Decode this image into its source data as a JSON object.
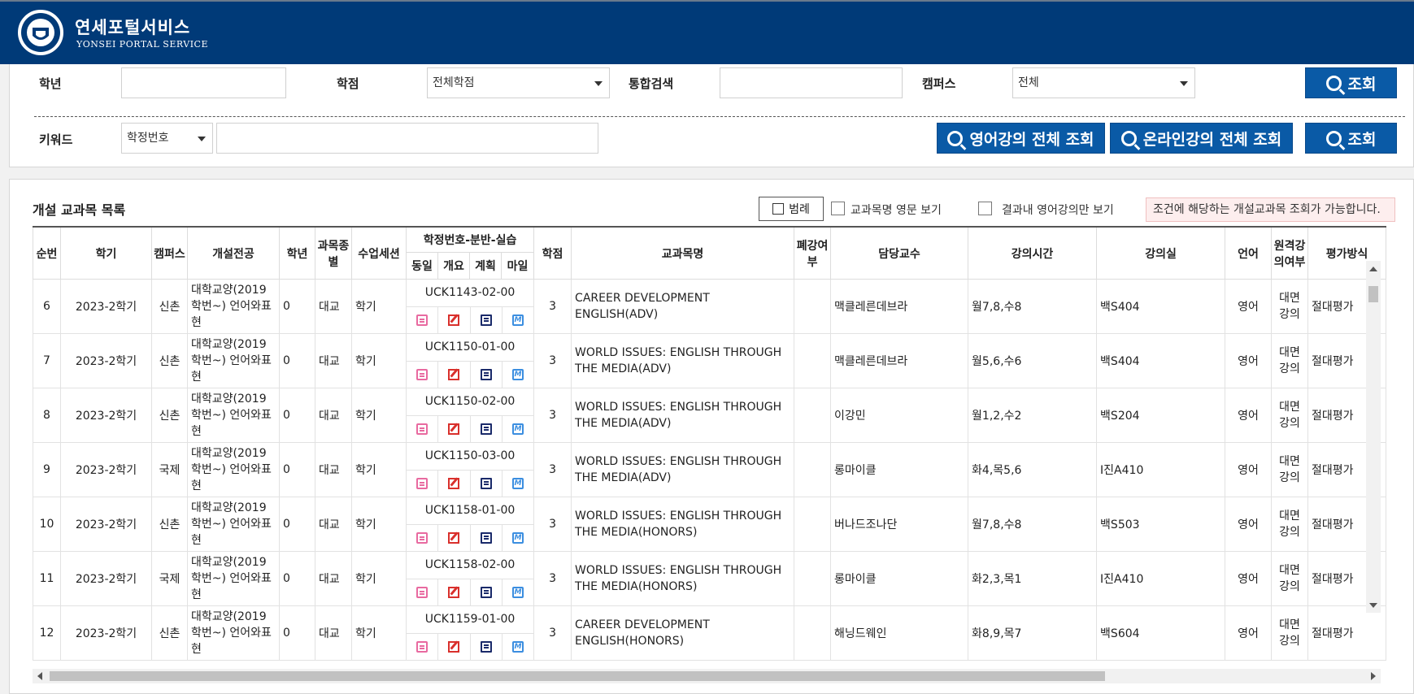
{
  "header": {
    "title_kr": "연세포털서비스",
    "title_en": "YONSEI PORTAL SERVICE",
    "brand_color": "#003a78"
  },
  "search": {
    "grade_label": "학년",
    "grade_value": "",
    "credit_label": "학점",
    "credit_value": "전체학점",
    "integrated_label": "통합검색",
    "integrated_value": "",
    "campus_label": "캠퍼스",
    "campus_value": "전체",
    "search_button": "조회",
    "keyword_label": "키워드",
    "keyword_type": "학정번호",
    "keyword_value": "",
    "english_all_button": "영어강의 전체 조회",
    "online_all_button": "온라인강의 전체 조회",
    "search_button2": "조회",
    "button_color": "#0a5aa6"
  },
  "list": {
    "title": "개설 교과목 목록",
    "legend_button": "범례",
    "english_name_label": "교과목명 영문 보기",
    "english_only_label": "결과내 영어강의만 보기",
    "notice": "조건에 해당하는 개설교과목 조회가 가능합니다.",
    "headers": {
      "no": "순번",
      "term": "학기",
      "campus": "캠퍼스",
      "dept": "개설전공",
      "grade": "학년",
      "type": "과목종별",
      "session": "수업세션",
      "code_group": "학정번호-분반-실습",
      "same": "동일",
      "summary": "개요",
      "plan": "계획",
      "mile": "마일",
      "credit": "학점",
      "course": "교과목명",
      "closed": "폐강여부",
      "prof": "담당교수",
      "time": "강의시간",
      "room": "강의실",
      "lang": "언어",
      "remote": "원격강의여부",
      "eval": "평가방식"
    },
    "rows": [
      {
        "no": "6",
        "term": "2023-2학기",
        "campus": "신촌",
        "dept": "대학교양(2019학번~) 언어와표현",
        "grade": "0",
        "type": "대교",
        "session": "학기",
        "code": "UCK1143-02-00",
        "credit": "3",
        "course": "CAREER DEVELOPMENT ENGLISH(ADV)",
        "closed": "",
        "prof": "맥클레른데브라",
        "time": "월7,8,수8",
        "room": "백S404",
        "lang": "영어",
        "remote": "대면강의",
        "eval": "절대평가"
      },
      {
        "no": "7",
        "term": "2023-2학기",
        "campus": "신촌",
        "dept": "대학교양(2019학번~) 언어와표현",
        "grade": "0",
        "type": "대교",
        "session": "학기",
        "code": "UCK1150-01-00",
        "credit": "3",
        "course": "WORLD ISSUES: ENGLISH THROUGH THE MEDIA(ADV)",
        "closed": "",
        "prof": "맥클레른데브라",
        "time": "월5,6,수6",
        "room": "백S404",
        "lang": "영어",
        "remote": "대면강의",
        "eval": "절대평가"
      },
      {
        "no": "8",
        "term": "2023-2학기",
        "campus": "신촌",
        "dept": "대학교양(2019학번~) 언어와표현",
        "grade": "0",
        "type": "대교",
        "session": "학기",
        "code": "UCK1150-02-00",
        "credit": "3",
        "course": "WORLD ISSUES: ENGLISH THROUGH THE MEDIA(ADV)",
        "closed": "",
        "prof": "이강민",
        "time": "월1,2,수2",
        "room": "백S204",
        "lang": "영어",
        "remote": "대면강의",
        "eval": "절대평가"
      },
      {
        "no": "9",
        "term": "2023-2학기",
        "campus": "국제",
        "dept": "대학교양(2019학번~) 언어와표현",
        "grade": "0",
        "type": "대교",
        "session": "학기",
        "code": "UCK1150-03-00",
        "credit": "3",
        "course": "WORLD ISSUES: ENGLISH THROUGH THE MEDIA(ADV)",
        "closed": "",
        "prof": "롱마이클",
        "time": "화4,목5,6",
        "room": "I진A410",
        "lang": "영어",
        "remote": "대면강의",
        "eval": "절대평가"
      },
      {
        "no": "10",
        "term": "2023-2학기",
        "campus": "신촌",
        "dept": "대학교양(2019학번~) 언어와표현",
        "grade": "0",
        "type": "대교",
        "session": "학기",
        "code": "UCK1158-01-00",
        "credit": "3",
        "course": "WORLD ISSUES: ENGLISH THROUGH THE MEDIA(HONORS)",
        "closed": "",
        "prof": "버나드조나단",
        "time": "월7,8,수8",
        "room": "백S503",
        "lang": "영어",
        "remote": "대면강의",
        "eval": "절대평가"
      },
      {
        "no": "11",
        "term": "2023-2학기",
        "campus": "국제",
        "dept": "대학교양(2019학번~) 언어와표현",
        "grade": "0",
        "type": "대교",
        "session": "학기",
        "code": "UCK1158-02-00",
        "credit": "3",
        "course": "WORLD ISSUES: ENGLISH THROUGH THE MEDIA(HONORS)",
        "closed": "",
        "prof": "롱마이클",
        "time": "화2,3,목1",
        "room": "I진A410",
        "lang": "영어",
        "remote": "대면강의",
        "eval": "절대평가"
      },
      {
        "no": "12",
        "term": "2023-2학기",
        "campus": "신촌",
        "dept": "대학교양(2019학번~) 언어와표현",
        "grade": "0",
        "type": "대교",
        "session": "학기",
        "code": "UCK1159-01-00",
        "credit": "3",
        "course": "CAREER DEVELOPMENT ENGLISH(HONORS)",
        "closed": "",
        "prof": "해닝드웨인",
        "time": "화8,9,목7",
        "room": "백S604",
        "lang": "영어",
        "remote": "대면강의",
        "eval": "절대평가"
      }
    ]
  }
}
